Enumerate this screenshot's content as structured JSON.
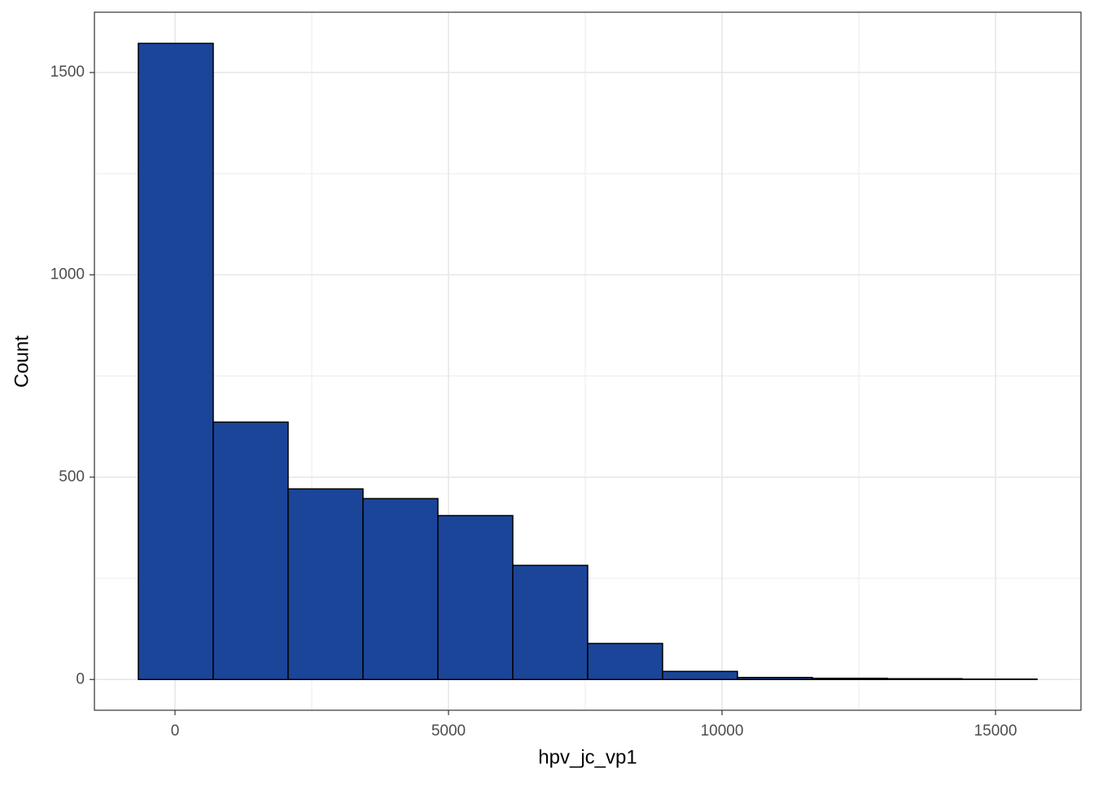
{
  "chart_data": {
    "type": "histogram",
    "x_label": "hpv_jc_vp1",
    "y_label": "Count",
    "bins": [
      -670,
      699,
      2068,
      3437,
      4806,
      6175,
      7544,
      8913,
      10282,
      11651,
      13020,
      14389,
      15758
    ],
    "values": [
      1572,
      636,
      471,
      447,
      405,
      282,
      89,
      20,
      5,
      3,
      2,
      1
    ],
    "color": "#1a4599",
    "edge_color": "#000000",
    "xlim": [
      -1473,
      16562
    ],
    "ylim": [
      -76,
      1649
    ],
    "xticks": [
      0,
      5000,
      10000,
      15000
    ],
    "yticks": [
      0,
      500,
      1000,
      1500
    ],
    "x_minor_grid": [
      2500,
      7500,
      12500
    ],
    "y_minor_grid": [
      250,
      750,
      1250
    ],
    "grid": true
  }
}
